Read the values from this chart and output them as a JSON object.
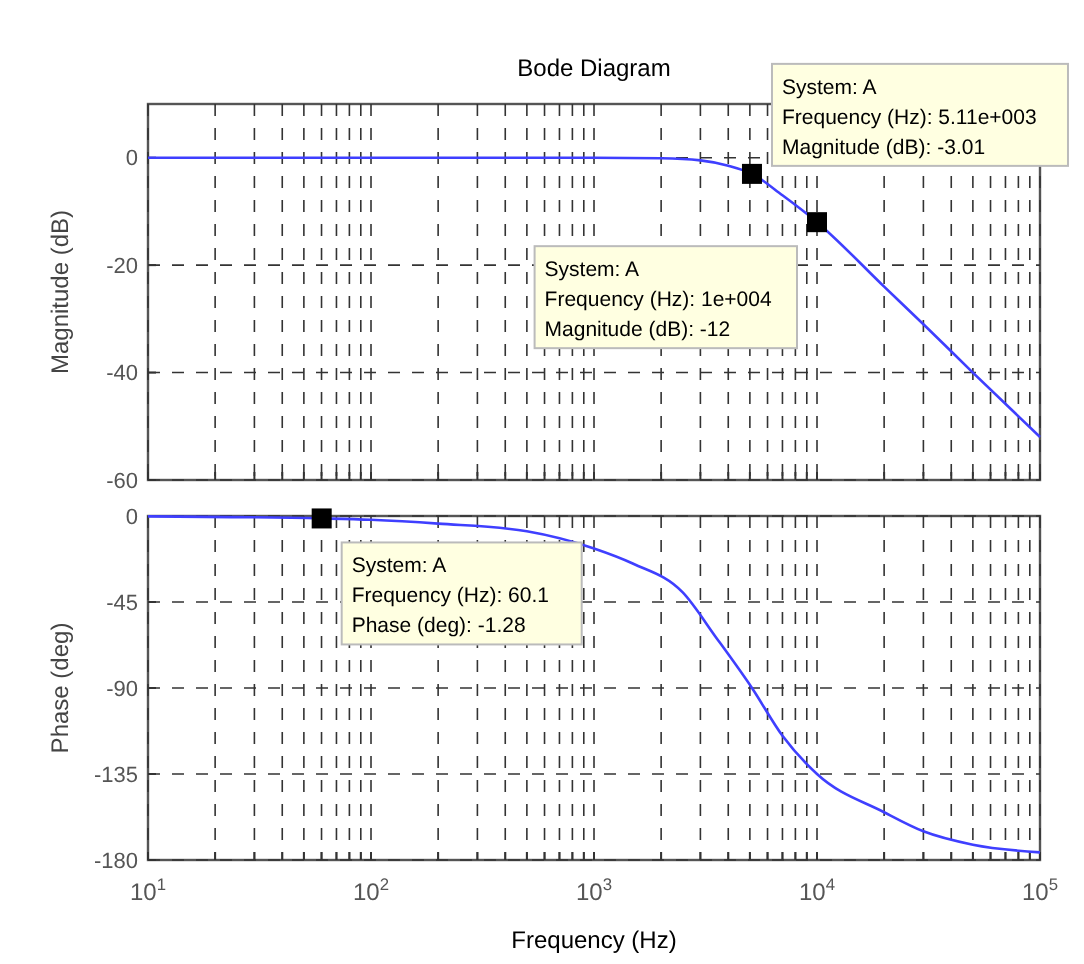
{
  "chart_data": [
    {
      "type": "line",
      "title": "Bode Diagram",
      "ylabel": "Magnitude (dB)",
      "log": "x",
      "grid": true,
      "tick_labels": "y",
      "xlim": [
        10,
        100000
      ],
      "ylim": [
        -60,
        10
      ],
      "yticks": [
        -60,
        -40,
        -20,
        0
      ],
      "xticks": [
        {
          "value": 10,
          "label": null
        },
        {
          "value": 20,
          "label": null
        },
        {
          "value": 30,
          "label": null
        },
        {
          "value": 40,
          "label": null
        },
        {
          "value": 50,
          "label": null
        },
        {
          "value": 60,
          "label": null
        },
        {
          "value": 70,
          "label": null
        },
        {
          "value": 80,
          "label": null
        },
        {
          "value": 90,
          "label": null
        },
        {
          "value": 100,
          "label": null
        },
        {
          "value": 200,
          "label": null
        },
        {
          "value": 300,
          "label": null
        },
        {
          "value": 400,
          "label": null
        },
        {
          "value": 500,
          "label": null
        },
        {
          "value": 600,
          "label": null
        },
        {
          "value": 700,
          "label": null
        },
        {
          "value": 800,
          "label": null
        },
        {
          "value": 900,
          "label": null
        },
        {
          "value": 1000,
          "label": null
        },
        {
          "value": 2000,
          "label": null
        },
        {
          "value": 3000,
          "label": null
        },
        {
          "value": 4000,
          "label": null
        },
        {
          "value": 5000,
          "label": null
        },
        {
          "value": 6000,
          "label": null
        },
        {
          "value": 7000,
          "label": null
        },
        {
          "value": 8000,
          "label": null
        },
        {
          "value": 9000,
          "label": null
        },
        {
          "value": 10000,
          "label": null
        },
        {
          "value": 20000,
          "label": null
        },
        {
          "value": 30000,
          "label": null
        },
        {
          "value": 40000,
          "label": null
        },
        {
          "value": 50000,
          "label": null
        },
        {
          "value": 60000,
          "label": null
        },
        {
          "value": 70000,
          "label": null
        },
        {
          "value": 80000,
          "label": null
        },
        {
          "value": 90000,
          "label": null
        },
        {
          "value": 100000,
          "label": null
        }
      ],
      "series": [
        {
          "color": "#3f3fff",
          "x": [
            10,
            100,
            1000,
            2000,
            3000,
            4000,
            5110,
            7000,
            10000,
            20000,
            30000,
            50000,
            100000
          ],
          "values": [
            0,
            0,
            0,
            -0.1,
            -0.5,
            -1.5,
            -3.01,
            -7,
            -12,
            -24,
            -31,
            -40,
            -52
          ]
        }
      ],
      "annotations": [
        {
          "text": "System: A\nFrequency (Hz): 5.11e+003\nMagnitude (dB): -3.01",
          "x": 5110,
          "y": -3.01
        },
        {
          "text": "System: A\nFrequency (Hz): 1e+004\nMagnitude (dB): -12",
          "x": 10000,
          "y": -12
        }
      ]
    },
    {
      "type": "line",
      "xlabel": "Frequency  (Hz)",
      "ylabel": "Phase (deg)",
      "log": "x",
      "grid": true,
      "xlim": [
        10,
        100000
      ],
      "ylim": [
        -180,
        0
      ],
      "yticks": [
        -180,
        -135,
        -90,
        -45,
        0
      ],
      "xticks": [
        {
          "value": 10,
          "label": "10$^{1}$"
        },
        {
          "value": 20,
          "label": null
        },
        {
          "value": 30,
          "label": null
        },
        {
          "value": 40,
          "label": null
        },
        {
          "value": 50,
          "label": null
        },
        {
          "value": 60,
          "label": null
        },
        {
          "value": 70,
          "label": null
        },
        {
          "value": 80,
          "label": null
        },
        {
          "value": 90,
          "label": null
        },
        {
          "value": 100,
          "label": "10$^{2}$"
        },
        {
          "value": 200,
          "label": null
        },
        {
          "value": 300,
          "label": null
        },
        {
          "value": 400,
          "label": null
        },
        {
          "value": 500,
          "label": null
        },
        {
          "value": 600,
          "label": null
        },
        {
          "value": 700,
          "label": null
        },
        {
          "value": 800,
          "label": null
        },
        {
          "value": 900,
          "label": null
        },
        {
          "value": 1000,
          "label": "10$^{3}$"
        },
        {
          "value": 2000,
          "label": null
        },
        {
          "value": 3000,
          "label": null
        },
        {
          "value": 4000,
          "label": null
        },
        {
          "value": 5000,
          "label": null
        },
        {
          "value": 6000,
          "label": null
        },
        {
          "value": 7000,
          "label": null
        },
        {
          "value": 8000,
          "label": null
        },
        {
          "value": 9000,
          "label": null
        },
        {
          "value": 10000,
          "label": "10$^{4}$"
        },
        {
          "value": 20000,
          "label": null
        },
        {
          "value": 30000,
          "label": null
        },
        {
          "value": 40000,
          "label": null
        },
        {
          "value": 50000,
          "label": null
        },
        {
          "value": 60000,
          "label": null
        },
        {
          "value": 70000,
          "label": null
        },
        {
          "value": 80000,
          "label": null
        },
        {
          "value": 90000,
          "label": null
        },
        {
          "value": 100000,
          "label": "10$^{5}$"
        }
      ],
      "series": [
        {
          "color": "#3f3fff",
          "x": [
            10,
            60.1,
            100,
            200,
            500,
            1000,
            1500,
            2500,
            3500,
            5110,
            7000,
            10000,
            20000,
            30000,
            50000,
            100000
          ],
          "values": [
            -0.2,
            -1.28,
            -2,
            -4,
            -8,
            -17,
            -25,
            -40,
            -63,
            -90,
            -115,
            -135,
            -155,
            -165,
            -172,
            -176
          ]
        }
      ],
      "annotations": [
        {
          "text": "System: A\nFrequency (Hz): 60.1\nPhase (deg): -1.28",
          "x": 60.1,
          "y": -1.28
        }
      ]
    }
  ]
}
